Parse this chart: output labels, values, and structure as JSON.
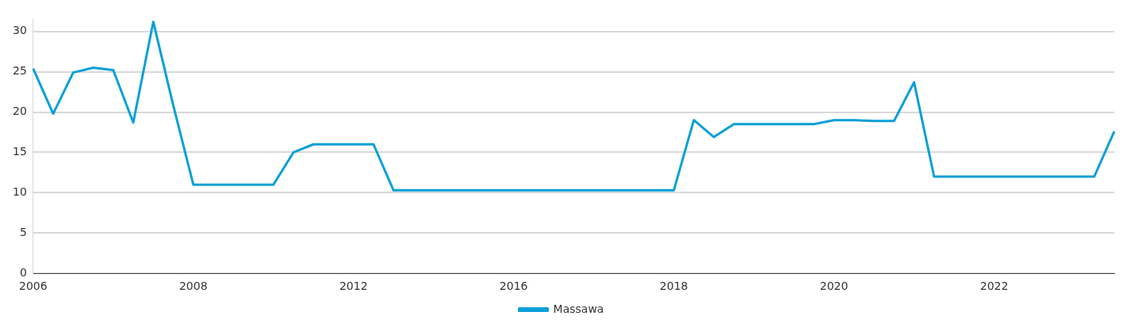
{
  "chart_data": {
    "type": "line",
    "categories": [
      "2006",
      null,
      null,
      null,
      null,
      null,
      null,
      null,
      "2008",
      null,
      null,
      null,
      null,
      null,
      null,
      null,
      "2012",
      null,
      null,
      null,
      null,
      null,
      null,
      null,
      "2016",
      null,
      null,
      null,
      null,
      null,
      null,
      null,
      "2018",
      null,
      null,
      null,
      null,
      null,
      null,
      null,
      "2020",
      null,
      null,
      null,
      null,
      null,
      null,
      null,
      "2022",
      null,
      null,
      null,
      null,
      null,
      null
    ],
    "series": [
      {
        "name": "Massawa",
        "color": "#0a9fd8",
        "values": [
          25.4,
          19.8,
          24.9,
          25.5,
          25.2,
          18.7,
          31.2,
          20.8,
          11.0,
          11.0,
          11.0,
          11.0,
          11.0,
          15.0,
          16.0,
          16.0,
          16.0,
          16.0,
          10.3,
          10.3,
          10.3,
          10.3,
          10.3,
          10.3,
          10.3,
          10.3,
          10.3,
          10.3,
          10.3,
          10.3,
          10.3,
          10.3,
          10.3,
          19.0,
          16.9,
          18.5,
          18.5,
          18.5,
          18.5,
          18.5,
          19.0,
          19.0,
          18.9,
          18.9,
          23.7,
          12.0,
          12.0,
          12.0,
          12.0,
          12.0,
          12.0,
          12.0,
          12.0,
          12.0,
          17.6
        ]
      }
    ],
    "ylim": [
      0,
      31.5
    ],
    "yticks": [
      0,
      5,
      10,
      15,
      20,
      25,
      30
    ],
    "grid": "y",
    "legend": "bottom",
    "marker": "none",
    "line_style": "solid"
  }
}
